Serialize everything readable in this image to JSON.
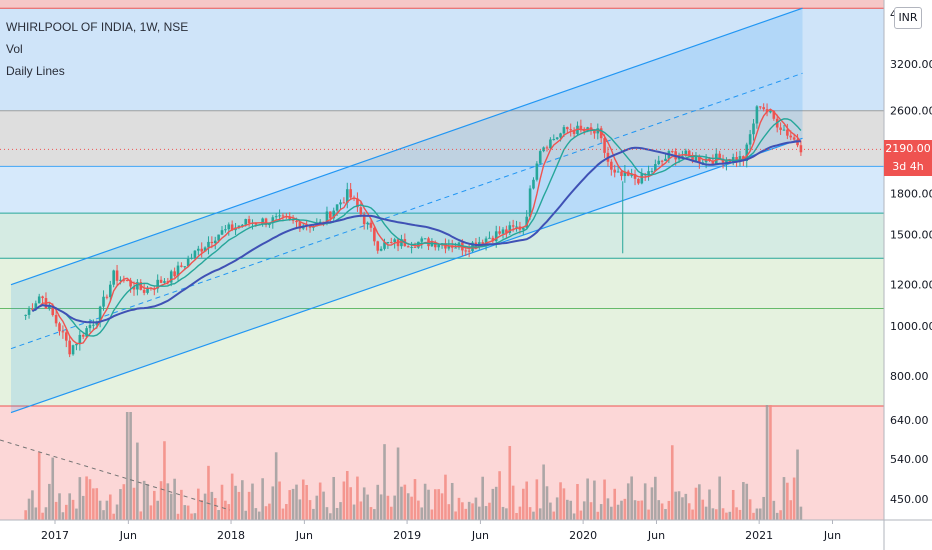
{
  "legend": {
    "symbol": "WHIRLPOOL OF INDIA, 1W, NSE",
    "volume_label": "Vol",
    "lines_label": "Daily Lines"
  },
  "currency_button": "INR",
  "last_price": {
    "value": "2190.00",
    "countdown": "3d 4h"
  },
  "chart_data": {
    "type": "candlestick",
    "symbol": "WHIRLPOOL OF INDIA",
    "interval": "1W",
    "exchange": "NSE",
    "price_scale": "log",
    "y_ticks": [
      4000,
      3200,
      2600,
      2190,
      1800,
      1500,
      1200,
      1000,
      800
    ],
    "y_tick_labels": [
      "4000",
      "3200.00",
      "2600.00",
      "2190.00",
      "1800.00",
      "1500.00",
      "1200.00",
      "1000.00",
      "800.00"
    ],
    "volume_tick_labels": [
      "640.00",
      "540.00",
      "450.00"
    ],
    "x_tick_labels": [
      "2017",
      "Jun",
      "2018",
      "Jun",
      "2019",
      "Jun",
      "2020",
      "Jun",
      "2021",
      "Jun"
    ],
    "x_ticks": [
      "2017-01",
      "2017-06",
      "2018-01",
      "2018-06",
      "2019-01",
      "2019-06",
      "2020-01",
      "2020-06",
      "2021-01",
      "2021-06"
    ],
    "last_close": 2190,
    "horizontal_levels": [
      4100,
      2600,
      2030,
      1650,
      1350,
      1080,
      700
    ],
    "channel": {
      "lower": [
        {
          "date": "2016-10",
          "price": 680
        },
        {
          "date": "2021-06",
          "price": 2300
        }
      ],
      "upper": [
        {
          "date": "2016-10",
          "price": 1200
        },
        {
          "date": "2021-06",
          "price": 4100
        }
      ]
    },
    "price_series": [
      {
        "date": "2016-11",
        "price": 1050
      },
      {
        "date": "2016-12",
        "price": 1150
      },
      {
        "date": "2017-02",
        "price": 900
      },
      {
        "date": "2017-04",
        "price": 1050
      },
      {
        "date": "2017-05",
        "price": 1250
      },
      {
        "date": "2017-07",
        "price": 1170
      },
      {
        "date": "2017-09",
        "price": 1250
      },
      {
        "date": "2017-12",
        "price": 1500
      },
      {
        "date": "2018-02",
        "price": 1580
      },
      {
        "date": "2018-04",
        "price": 1600
      },
      {
        "date": "2018-07",
        "price": 1560
      },
      {
        "date": "2018-09",
        "price": 1800
      },
      {
        "date": "2018-11",
        "price": 1430
      },
      {
        "date": "2019-01",
        "price": 1450
      },
      {
        "date": "2019-03",
        "price": 1450
      },
      {
        "date": "2019-05",
        "price": 1420
      },
      {
        "date": "2019-07",
        "price": 1500
      },
      {
        "date": "2019-09",
        "price": 1560
      },
      {
        "date": "2019-10",
        "price": 2200
      },
      {
        "date": "2019-12",
        "price": 2400
      },
      {
        "date": "2020-02",
        "price": 2350
      },
      {
        "date": "2020-03",
        "price": 1950
      },
      {
        "date": "2020-05",
        "price": 1920
      },
      {
        "date": "2020-07",
        "price": 2150
      },
      {
        "date": "2020-09",
        "price": 2100
      },
      {
        "date": "2020-12",
        "price": 2100
      },
      {
        "date": "2021-01",
        "price": 2700
      },
      {
        "date": "2021-02",
        "price": 2500
      },
      {
        "date": "2021-04",
        "price": 2190
      }
    ],
    "moving_averages": [
      {
        "name": "",
        "color": "#ef5350"
      },
      {
        "name": "",
        "color": "#26a69a"
      },
      {
        "name": "",
        "color": "#3f51b5"
      }
    ],
    "colors": {
      "up": "#26a69a",
      "down": "#ef5350",
      "channel_line": "#2196f3",
      "volume_down": "#f28b82",
      "volume_up": "#9e9e9e"
    }
  }
}
